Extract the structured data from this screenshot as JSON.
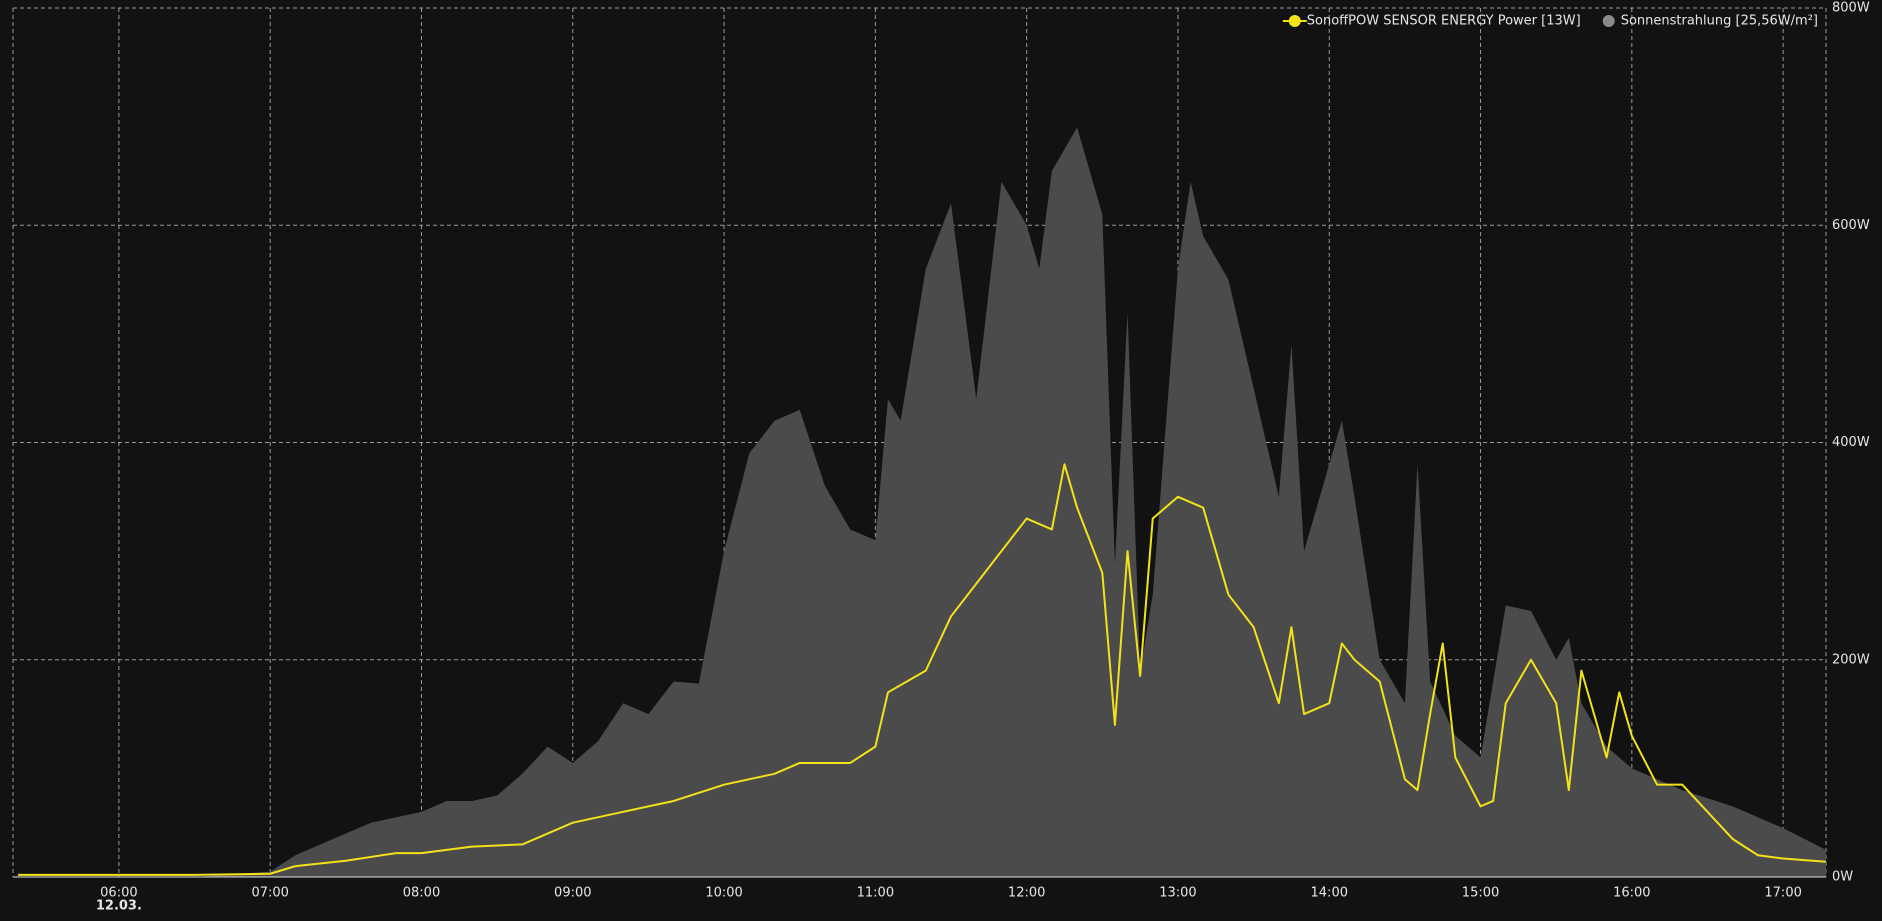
{
  "chart_data": {
    "type": "line",
    "date_label": "12.03.",
    "xlim": [
      "05:18",
      "17:17"
    ],
    "xticks": [
      "06:00",
      "07:00",
      "08:00",
      "09:00",
      "10:00",
      "11:00",
      "12:00",
      "13:00",
      "14:00",
      "15:00",
      "16:00",
      "17:00"
    ],
    "ylim": [
      0,
      800
    ],
    "yticks": [
      {
        "value": 0,
        "label": "0W"
      },
      {
        "value": 200,
        "label": "200W"
      },
      {
        "value": 400,
        "label": "400W"
      },
      {
        "value": 600,
        "label": "600W"
      },
      {
        "value": 800,
        "label": "800W"
      }
    ],
    "grid": true,
    "legend": "top-right",
    "series": [
      {
        "name": "SonoffPOW SENSOR ENERGY  Power [13W]",
        "color": "#f2e21a",
        "style": "line",
        "x": [
          "05:20",
          "06:00",
          "06:30",
          "07:00",
          "07:10",
          "07:30",
          "07:50",
          "08:00",
          "08:20",
          "08:40",
          "09:00",
          "09:20",
          "09:40",
          "10:00",
          "10:20",
          "10:30",
          "10:50",
          "11:00",
          "11:05",
          "11:20",
          "11:30",
          "11:40",
          "11:50",
          "12:00",
          "12:10",
          "12:15",
          "12:20",
          "12:30",
          "12:35",
          "12:40",
          "12:45",
          "12:50",
          "13:00",
          "13:10",
          "13:20",
          "13:30",
          "13:40",
          "13:45",
          "13:50",
          "14:00",
          "14:05",
          "14:10",
          "14:20",
          "14:30",
          "14:35",
          "14:40",
          "14:45",
          "14:50",
          "15:00",
          "15:05",
          "15:10",
          "15:20",
          "15:30",
          "15:35",
          "15:40",
          "15:50",
          "15:55",
          "16:00",
          "16:10",
          "16:20",
          "16:30",
          "16:40",
          "16:50",
          "17:00",
          "17:17"
        ],
        "values": [
          2,
          2,
          2,
          3,
          10,
          15,
          22,
          22,
          28,
          30,
          50,
          60,
          70,
          85,
          95,
          105,
          105,
          120,
          170,
          190,
          240,
          270,
          300,
          330,
          320,
          380,
          340,
          280,
          140,
          300,
          185,
          330,
          350,
          340,
          260,
          230,
          160,
          230,
          150,
          160,
          215,
          200,
          180,
          90,
          80,
          150,
          215,
          110,
          65,
          70,
          160,
          200,
          160,
          80,
          190,
          110,
          170,
          130,
          85,
          85,
          60,
          35,
          20,
          17,
          14
        ]
      },
      {
        "name": "Sonnenstrahlung [25,56W/m²]",
        "color": "#4b4b4b",
        "legend_color": "#8a8a8a",
        "style": "area",
        "x": [
          "05:20",
          "05:30",
          "06:00",
          "06:30",
          "07:00",
          "07:10",
          "07:20",
          "07:30",
          "07:40",
          "07:50",
          "08:00",
          "08:10",
          "08:20",
          "08:30",
          "08:40",
          "08:50",
          "09:00",
          "09:10",
          "09:20",
          "09:30",
          "09:40",
          "09:50",
          "10:00",
          "10:10",
          "10:20",
          "10:30",
          "10:40",
          "10:50",
          "11:00",
          "11:05",
          "11:10",
          "11:20",
          "11:30",
          "11:40",
          "11:50",
          "12:00",
          "12:05",
          "12:10",
          "12:20",
          "12:30",
          "12:35",
          "12:40",
          "12:45",
          "12:50",
          "13:00",
          "13:05",
          "13:10",
          "13:20",
          "13:30",
          "13:40",
          "13:45",
          "13:50",
          "14:00",
          "14:05",
          "14:10",
          "14:20",
          "14:30",
          "14:35",
          "14:40",
          "14:50",
          "15:00",
          "15:05",
          "15:10",
          "15:20",
          "15:30",
          "15:35",
          "15:40",
          "15:50",
          "16:00",
          "16:20",
          "16:40",
          "17:00",
          "17:17"
        ],
        "values": [
          0,
          0,
          0,
          0,
          5,
          20,
          30,
          40,
          50,
          55,
          60,
          70,
          70,
          75,
          95,
          120,
          105,
          125,
          160,
          150,
          180,
          178,
          300,
          390,
          420,
          430,
          360,
          320,
          310,
          440,
          420,
          560,
          620,
          440,
          640,
          600,
          560,
          650,
          690,
          610,
          288,
          520,
          189,
          260,
          560,
          640,
          590,
          550,
          450,
          350,
          490,
          300,
          380,
          420,
          350,
          200,
          160,
          380,
          180,
          130,
          110,
          180,
          250,
          245,
          200,
          220,
          160,
          120,
          100,
          80,
          65,
          45,
          25
        ]
      }
    ]
  }
}
